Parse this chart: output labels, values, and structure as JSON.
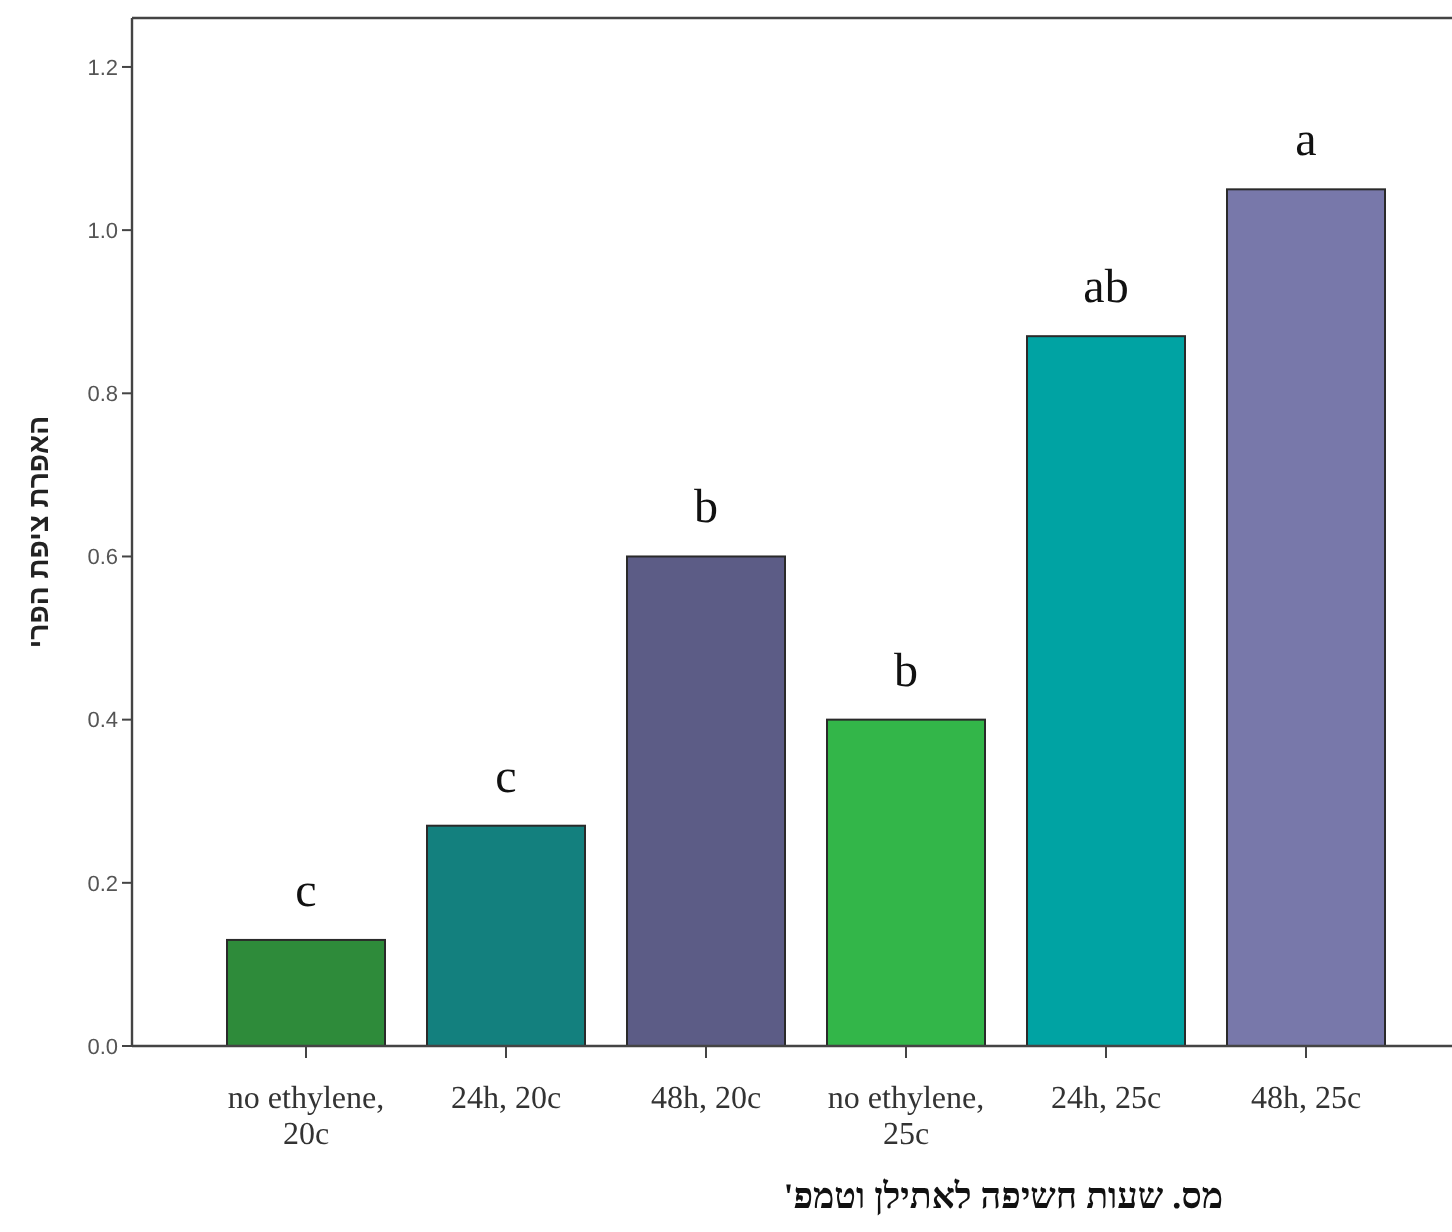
{
  "chart_data": {
    "type": "bar",
    "xlabel": "מס. שעות חשיפה לאתילן וטמפ'",
    "ylabel": "האפרת ציפת הפרי",
    "categories": [
      "no ethylene, 20c",
      "24h, 20c",
      "48h, 20c",
      "no ethylene, 25c",
      "24h, 25c",
      "48h, 25c"
    ],
    "values": [
      0.13,
      0.27,
      0.6,
      0.4,
      0.87,
      1.05
    ],
    "colors": [
      "#2e8b3a",
      "#13807e",
      "#5c5c86",
      "#33b649",
      "#00a3a3",
      "#7878aa"
    ],
    "ylim": [
      0,
      1.26
    ],
    "yticks": [
      {
        "value": 0,
        "label": "0.0"
      },
      0.2,
      0.4,
      0.6,
      0.8,
      {
        "value": 1,
        "label": "1.0"
      },
      1.2
    ],
    "annotations": [
      {
        "text": "c",
        "x": "no ethylene, 20c",
        "y": 0.13
      },
      {
        "text": "c",
        "x": "24h, 20c",
        "y": 0.27
      },
      {
        "text": "b",
        "x": "48h, 20c",
        "y": 0.6
      },
      {
        "text": "b",
        "x": "no ethylene, 25c",
        "y": 0.4
      },
      {
        "text": "ab",
        "x": "24h, 25c",
        "y": 0.87
      },
      {
        "text": "a",
        "x": "48h, 25c",
        "y": 1.05
      }
    ],
    "grid": false
  }
}
